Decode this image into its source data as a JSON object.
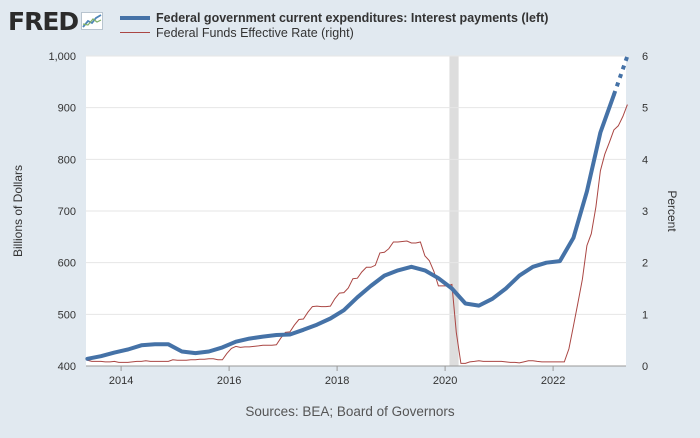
{
  "logo": {
    "text": "FRED"
  },
  "legend": {
    "series1": "Federal government current expenditures: Interest payments (left)",
    "series2": "Federal Funds Effective Rate (right)"
  },
  "source": "Sources: BEA; Board of Governors",
  "colors": {
    "series1": "#4572a7",
    "series2": "#aa4643",
    "recession": "#dddddd",
    "background": "#e1e9f0"
  },
  "chart_data": {
    "type": "line",
    "title": "",
    "xlabel": "",
    "ylabel_left": "Billions of Dollars",
    "ylabel_right": "Percent",
    "xlim": [
      2013.35,
      2023.35
    ],
    "ylim_left": [
      400,
      1000
    ],
    "ylim_right": [
      0,
      6
    ],
    "x_ticks": [
      2014,
      2016,
      2018,
      2020,
      2022
    ],
    "x_tick_labels": [
      "2014",
      "2016",
      "2018",
      "2020",
      "2022"
    ],
    "y_left_ticks": [
      400,
      500,
      600,
      700,
      800,
      900,
      1000
    ],
    "y_left_tick_labels": [
      "400",
      "500",
      "600",
      "700",
      "800",
      "900",
      "1,000"
    ],
    "y_right_ticks": [
      0,
      1,
      2,
      3,
      4,
      5,
      6
    ],
    "y_right_tick_labels": [
      "0",
      "1",
      "2",
      "3",
      "4",
      "5",
      "6"
    ],
    "recession": [
      {
        "start": 2020.08,
        "end": 2020.25
      }
    ],
    "series": [
      {
        "name": "Federal government current expenditures: Interest payments (left)",
        "axis": "left",
        "style": "thick",
        "x": [
          2013.375,
          2013.625,
          2013.875,
          2014.125,
          2014.375,
          2014.625,
          2014.875,
          2015.125,
          2015.375,
          2015.625,
          2015.875,
          2016.125,
          2016.375,
          2016.625,
          2016.875,
          2017.125,
          2017.375,
          2017.625,
          2017.875,
          2018.125,
          2018.375,
          2018.625,
          2018.875,
          2019.125,
          2019.375,
          2019.625,
          2019.875,
          2020.125,
          2020.375,
          2020.625,
          2020.875,
          2021.125,
          2021.375,
          2021.625,
          2021.875,
          2022.125,
          2022.375,
          2022.625,
          2022.875,
          2023.125
        ],
        "values": [
          414,
          419,
          426,
          432,
          440,
          442,
          442,
          428,
          425,
          428,
          436,
          447,
          453,
          457,
          460,
          461,
          470,
          480,
          492,
          508,
          533,
          555,
          575,
          585,
          592,
          585,
          570,
          550,
          521,
          517,
          530,
          550,
          575,
          592,
          600,
          603,
          648,
          738,
          852,
          925
        ],
        "projected": {
          "x": [
            2023.125,
            2023.375
          ],
          "values": [
            925,
            1000
          ]
        }
      },
      {
        "name": "Federal Funds Effective Rate (right)",
        "axis": "right",
        "style": "thin",
        "x": [
          2013.375,
          2013.458,
          2013.542,
          2013.625,
          2013.708,
          2013.792,
          2013.875,
          2013.958,
          2014.042,
          2014.125,
          2014.208,
          2014.292,
          2014.375,
          2014.458,
          2014.542,
          2014.625,
          2014.708,
          2014.792,
          2014.875,
          2014.958,
          2015.042,
          2015.125,
          2015.208,
          2015.292,
          2015.375,
          2015.458,
          2015.542,
          2015.625,
          2015.708,
          2015.792,
          2015.875,
          2015.958,
          2016.042,
          2016.125,
          2016.208,
          2016.292,
          2016.375,
          2016.458,
          2016.542,
          2016.625,
          2016.708,
          2016.792,
          2016.875,
          2016.958,
          2017.042,
          2017.125,
          2017.208,
          2017.292,
          2017.375,
          2017.458,
          2017.542,
          2017.625,
          2017.708,
          2017.792,
          2017.875,
          2017.958,
          2018.042,
          2018.125,
          2018.208,
          2018.292,
          2018.375,
          2018.458,
          2018.542,
          2018.625,
          2018.708,
          2018.792,
          2018.875,
          2018.958,
          2019.042,
          2019.125,
          2019.208,
          2019.292,
          2019.375,
          2019.458,
          2019.542,
          2019.625,
          2019.708,
          2019.792,
          2019.875,
          2019.958,
          2020.042,
          2020.125,
          2020.208,
          2020.292,
          2020.375,
          2020.458,
          2020.542,
          2020.625,
          2020.708,
          2020.792,
          2020.875,
          2020.958,
          2021.042,
          2021.125,
          2021.208,
          2021.292,
          2021.375,
          2021.458,
          2021.542,
          2021.625,
          2021.708,
          2021.792,
          2021.875,
          2021.958,
          2022.042,
          2022.125,
          2022.208,
          2022.292,
          2022.375,
          2022.458,
          2022.542,
          2022.625,
          2022.708,
          2022.792,
          2022.875,
          2022.958,
          2023.042,
          2023.125,
          2023.208,
          2023.292,
          2023.375
        ],
        "values": [
          0.11,
          0.09,
          0.09,
          0.09,
          0.08,
          0.08,
          0.09,
          0.07,
          0.07,
          0.07,
          0.08,
          0.09,
          0.09,
          0.1,
          0.09,
          0.09,
          0.09,
          0.09,
          0.09,
          0.12,
          0.11,
          0.11,
          0.11,
          0.12,
          0.12,
          0.13,
          0.13,
          0.14,
          0.14,
          0.12,
          0.12,
          0.24,
          0.34,
          0.38,
          0.36,
          0.37,
          0.37,
          0.38,
          0.39,
          0.4,
          0.4,
          0.4,
          0.41,
          0.54,
          0.65,
          0.66,
          0.79,
          0.9,
          0.91,
          1.04,
          1.15,
          1.16,
          1.15,
          1.15,
          1.16,
          1.3,
          1.41,
          1.42,
          1.51,
          1.69,
          1.7,
          1.82,
          1.91,
          1.91,
          1.95,
          2.19,
          2.2,
          2.27,
          2.4,
          2.4,
          2.41,
          2.42,
          2.38,
          2.38,
          2.4,
          2.13,
          2.04,
          1.83,
          1.55,
          1.55,
          1.55,
          1.58,
          0.65,
          0.05,
          0.05,
          0.08,
          0.09,
          0.1,
          0.09,
          0.09,
          0.09,
          0.09,
          0.09,
          0.08,
          0.07,
          0.07,
          0.06,
          0.08,
          0.1,
          0.1,
          0.09,
          0.08,
          0.08,
          0.08,
          0.08,
          0.08,
          0.08,
          0.33,
          0.77,
          1.21,
          1.68,
          2.33,
          2.56,
          3.08,
          3.78,
          4.1,
          4.33,
          4.57,
          4.65,
          4.83,
          5.06
        ]
      }
    ]
  }
}
